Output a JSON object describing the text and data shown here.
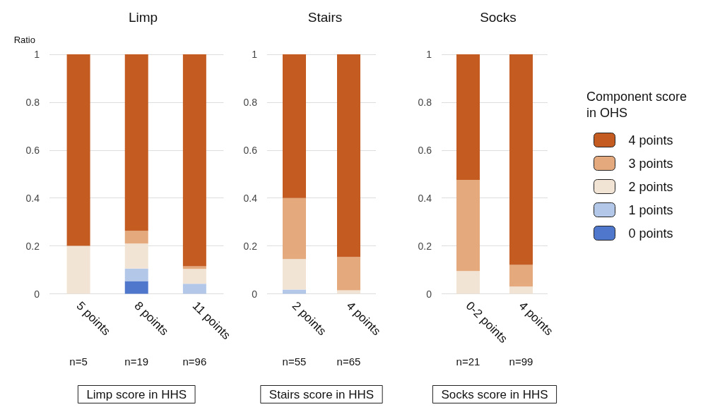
{
  "chart_data": [
    {
      "type": "bar",
      "title": "Limp",
      "ylabel": "Ratio",
      "xlabel": "Limp score in HHS",
      "categories": [
        "5 points",
        "8 points",
        "11 points"
      ],
      "stacked": true,
      "ylim": [
        0,
        1
      ],
      "yticks": [
        0,
        0.2,
        0.4,
        0.6,
        0.8,
        1
      ],
      "grid": "y",
      "legend": false,
      "annotations": [
        "n=5",
        "n=19",
        "n=96"
      ],
      "series": [
        {
          "color": "#4f78cc",
          "values": [
            0,
            0.053,
            0
          ]
        },
        {
          "color": "#b3c8e8",
          "values": [
            0,
            0.052,
            0.042
          ]
        },
        {
          "color": "#f2e4d4",
          "values": [
            0.2,
            0.105,
            0.062
          ]
        },
        {
          "color": "#e5a97e",
          "values": [
            0,
            0.053,
            0.011
          ]
        },
        {
          "color": "#c45c22",
          "values": [
            0.8,
            0.737,
            0.885
          ]
        }
      ]
    },
    {
      "type": "bar",
      "title": "Stairs",
      "xlabel": "Stairs score in HHS",
      "categories": [
        "2 points",
        "4 points"
      ],
      "stacked": true,
      "ylim": [
        0,
        1
      ],
      "yticks": [
        0,
        0.2,
        0.4,
        0.6,
        0.8,
        1
      ],
      "grid": "y",
      "legend": false,
      "annotations": [
        "n=55",
        "n=65"
      ],
      "series": [
        {
          "color": "#4f78cc",
          "values": [
            0,
            0
          ]
        },
        {
          "color": "#b3c8e8",
          "values": [
            0.018,
            0
          ]
        },
        {
          "color": "#f2e4d4",
          "values": [
            0.127,
            0.015
          ]
        },
        {
          "color": "#e5a97e",
          "values": [
            0.255,
            0.139
          ]
        },
        {
          "color": "#c45c22",
          "values": [
            0.6,
            0.846
          ]
        }
      ]
    },
    {
      "type": "bar",
      "title": "Socks",
      "xlabel": "Socks score in HHS",
      "categories": [
        "0-2 points",
        "4 points"
      ],
      "stacked": true,
      "ylim": [
        0,
        1
      ],
      "yticks": [
        0,
        0.2,
        0.4,
        0.6,
        0.8,
        1
      ],
      "grid": "y",
      "legend": "right",
      "legend_title": "Component score in OHS",
      "annotations": [
        "n=21",
        "n=99"
      ],
      "series": [
        {
          "name": "0 points",
          "color": "#4f78cc",
          "values": [
            0,
            0
          ]
        },
        {
          "name": "1 points",
          "color": "#b3c8e8",
          "values": [
            0,
            0
          ]
        },
        {
          "name": "2 points",
          "color": "#f2e4d4",
          "values": [
            0.095,
            0.03
          ]
        },
        {
          "name": "3 points",
          "color": "#e5a97e",
          "values": [
            0.381,
            0.091
          ]
        },
        {
          "name": "4 points",
          "color": "#c45c22",
          "values": [
            0.524,
            0.879
          ]
        }
      ]
    }
  ]
}
